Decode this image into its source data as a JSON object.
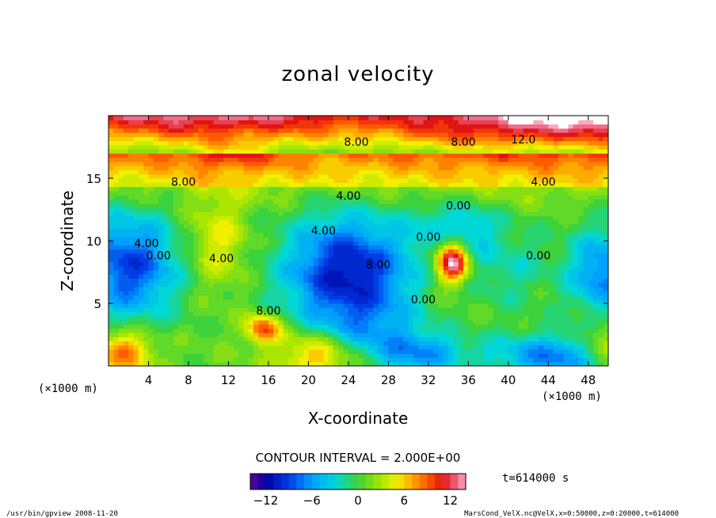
{
  "chart_data": {
    "type": "heatmap",
    "title": "zonal velocity",
    "xlabel": "X-coordinate",
    "ylabel": "Z-coordinate",
    "x_unit_left": "(×1000 m)",
    "x_unit_right": "(×1000 m)",
    "xlim": [
      0,
      50
    ],
    "ylim": [
      0,
      20
    ],
    "x_ticks": [
      4,
      8,
      12,
      16,
      20,
      24,
      28,
      32,
      36,
      40,
      44,
      48
    ],
    "y_ticks": [
      5,
      10,
      15
    ],
    "contour_interval_text": "CONTOUR INTERVAL = 2.000E+00",
    "time_text": "t=614000 s",
    "colorbar": {
      "min": -14,
      "max": 14,
      "step": 1,
      "ticks": [
        -12,
        -6,
        0,
        6,
        12
      ]
    },
    "contour_labels": [
      {
        "x": 7.5,
        "y": 14.4,
        "text": "8.00"
      },
      {
        "x": 24.8,
        "y": 17.6,
        "text": "8.00"
      },
      {
        "x": 35.5,
        "y": 17.6,
        "text": "8.00"
      },
      {
        "x": 41.5,
        "y": 17.8,
        "text": "12.0"
      },
      {
        "x": 43.5,
        "y": 14.4,
        "text": "4.00"
      },
      {
        "x": 24.0,
        "y": 13.3,
        "text": "4.00"
      },
      {
        "x": 35.0,
        "y": 12.5,
        "text": "0.00"
      },
      {
        "x": 21.5,
        "y": 10.5,
        "text": "4.00"
      },
      {
        "x": 3.8,
        "y": 9.5,
        "text": "4.00"
      },
      {
        "x": 5.0,
        "y": 8.5,
        "text": "0.00"
      },
      {
        "x": 11.3,
        "y": 8.3,
        "text": "4.00"
      },
      {
        "x": 27.0,
        "y": 7.8,
        "text": "8.00"
      },
      {
        "x": 32.0,
        "y": 10.0,
        "text": "0.00"
      },
      {
        "x": 43.0,
        "y": 8.5,
        "text": "0.00"
      },
      {
        "x": 16.0,
        "y": 4.1,
        "text": "8.00"
      },
      {
        "x": 31.5,
        "y": 5.0,
        "text": "0.00"
      }
    ],
    "features": [
      {
        "x": 50.0,
        "y": 20.5,
        "sx": 8.0,
        "sy": 2.2,
        "amp": 7.0
      },
      {
        "x": 10.0,
        "y": 19.5,
        "sx": 9.0,
        "sy": 1.5,
        "amp": 3.5
      },
      {
        "x": 36.0,
        "y": 18.5,
        "sx": 6.0,
        "sy": 1.2,
        "amp": 3.0
      },
      {
        "x": 12.0,
        "y": 17.0,
        "sx": 3.0,
        "sy": 0.8,
        "amp": 2.5
      },
      {
        "x": 34.5,
        "y": 8.3,
        "sx": 1.0,
        "sy": 1.0,
        "amp": 11.0
      },
      {
        "x": 34.0,
        "y": 9.5,
        "sx": 1.4,
        "sy": 2.0,
        "amp": 5.0
      },
      {
        "x": 15.5,
        "y": 3.0,
        "sx": 1.2,
        "sy": 0.8,
        "amp": 9.0
      },
      {
        "x": 1.5,
        "y": 1.2,
        "sx": 2.0,
        "sy": 1.2,
        "amp": 8.0
      },
      {
        "x": 21.0,
        "y": 1.0,
        "sx": 3.0,
        "sy": 1.4,
        "amp": 7.0
      },
      {
        "x": 49.5,
        "y": 1.5,
        "sx": 1.8,
        "sy": 1.4,
        "amp": 6.0
      },
      {
        "x": 11.0,
        "y": 10.0,
        "sx": 2.0,
        "sy": 2.5,
        "amp": 4.0
      },
      {
        "x": 24.0,
        "y": 7.5,
        "sx": 4.5,
        "sy": 3.2,
        "amp": -12.0
      },
      {
        "x": 2.0,
        "y": 8.0,
        "sx": 3.5,
        "sy": 3.0,
        "amp": -10.0
      },
      {
        "x": 45.0,
        "y": 0.8,
        "sx": 5.0,
        "sy": 1.3,
        "amp": -8.0
      },
      {
        "x": 34.5,
        "y": 11.0,
        "sx": 2.5,
        "sy": 1.5,
        "amp": -7.0
      },
      {
        "x": 49.5,
        "y": 7.5,
        "sx": 2.5,
        "sy": 2.5,
        "amp": -8.0
      },
      {
        "x": 31.5,
        "y": 1.0,
        "sx": 3.0,
        "sy": 1.2,
        "amp": -6.0
      },
      {
        "x": 40.0,
        "y": 8.0,
        "sx": 3.0,
        "sy": 2.5,
        "amp": -3.0
      },
      {
        "x": 26.0,
        "y": 2.5,
        "sx": 4.0,
        "sy": 1.8,
        "amp": -4.0
      }
    ]
  },
  "footer": {
    "left": "/usr/bin/gpview  2008-11-20",
    "right": "MarsCond_VelX.nc@VelX,x=0:50000,z=0:20000,t=614000"
  }
}
